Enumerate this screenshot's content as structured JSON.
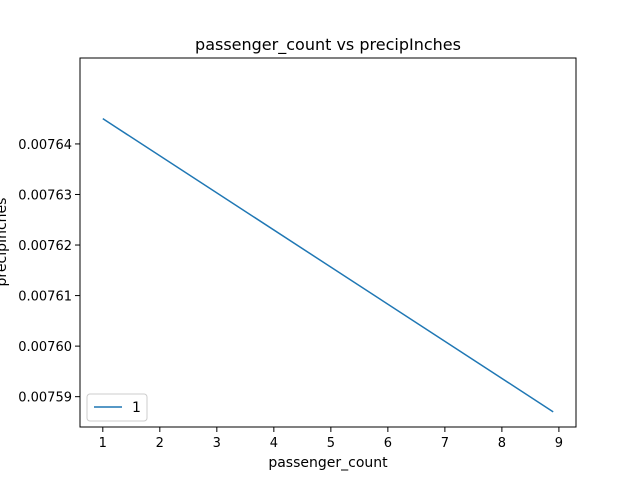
{
  "chart_data": {
    "type": "line",
    "title": "passenger_count vs precipInches",
    "xlabel": "passenger_count",
    "ylabel": "precipInches",
    "xlim": [
      0.6,
      9.3
    ],
    "ylim": [
      0.007584,
      0.007657
    ],
    "x_ticks": [
      1,
      2,
      3,
      4,
      5,
      6,
      7,
      8,
      9
    ],
    "y_ticks": [
      0.00759,
      0.0076,
      0.00761,
      0.00762,
      0.00763,
      0.00764
    ],
    "y_tick_labels": [
      "0.00759",
      "0.00760",
      "0.00761",
      "0.00762",
      "0.00763",
      "0.00764"
    ],
    "grid": false,
    "legend_position": "lower-left",
    "series": [
      {
        "name": "1",
        "color": "#1f77b4",
        "x": [
          1,
          8.9
        ],
        "y": [
          0.007645,
          0.007587
        ]
      }
    ]
  }
}
